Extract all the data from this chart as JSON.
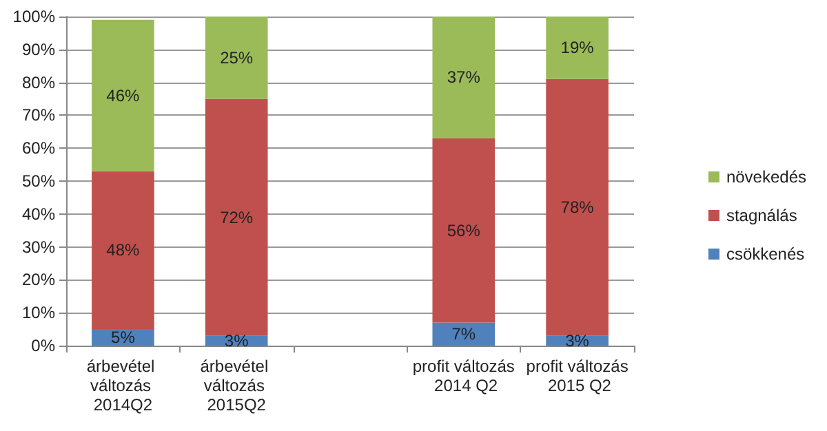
{
  "chart_data": {
    "type": "bar",
    "stacked": true,
    "categories": [
      "árbevétel változás 2014Q2",
      "árbevétel változás 2015Q2",
      null,
      "profit változás 2014 Q2",
      "profit változás 2015 Q2"
    ],
    "series": [
      {
        "name": "csökkenés",
        "color": "#4f81bd",
        "values": [
          5,
          3,
          null,
          7,
          3
        ],
        "value_labels": [
          "5%",
          "3%",
          null,
          "7%",
          "3%"
        ]
      },
      {
        "name": "stagnálás",
        "color": "#c0504d",
        "values": [
          48,
          72,
          null,
          56,
          78
        ],
        "value_labels": [
          "48%",
          "72%",
          null,
          "56%",
          "78%"
        ]
      },
      {
        "name": "növekedés",
        "color": "#9bbb59",
        "values": [
          46,
          25,
          null,
          37,
          19
        ],
        "value_labels": [
          "46%",
          "25%",
          null,
          "37%",
          "19%"
        ]
      }
    ],
    "ylim": [
      0,
      100
    ],
    "yticks": [
      {
        "value": 0,
        "label": "0%"
      },
      {
        "value": 10,
        "label": "10%"
      },
      {
        "value": 20,
        "label": "20%"
      },
      {
        "value": 30,
        "label": "30%"
      },
      {
        "value": 40,
        "label": "40%"
      },
      {
        "value": 50,
        "label": "50%"
      },
      {
        "value": 60,
        "label": "60%"
      },
      {
        "value": 70,
        "label": "70%"
      },
      {
        "value": 80,
        "label": "80%"
      },
      {
        "value": 90,
        "label": "90%"
      },
      {
        "value": 100,
        "label": "100%"
      }
    ],
    "grid": "y",
    "legend": "right"
  }
}
